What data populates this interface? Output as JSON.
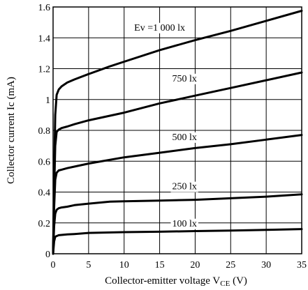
{
  "chart_data": {
    "type": "line",
    "title": "",
    "xlabel_main": "Collector-emitter voltage V",
    "xlabel_sub": "CE",
    "xlabel_unit": " (V)",
    "ylabel": "Collector current Ic (mA)",
    "xlim": [
      0,
      35
    ],
    "ylim": [
      0,
      1.6
    ],
    "x_ticks": [
      0,
      5,
      10,
      15,
      20,
      25,
      30,
      35
    ],
    "y_ticks": [
      0,
      0.2,
      0.4,
      0.6,
      0.8,
      1.0,
      1.2,
      1.4,
      1.6
    ],
    "x_tick_labels": [
      "0",
      "5",
      "10",
      "15",
      "20",
      "25",
      "30",
      "35"
    ],
    "y_tick_labels": [
      "0",
      "0.2",
      "0.4",
      "0.6",
      "0.8",
      "1",
      "1.2",
      "1.4",
      "1.6"
    ],
    "grid": true,
    "series": [
      {
        "name": "Ev =1 000 lx",
        "x": [
          0,
          0.15,
          0.3,
          0.5,
          0.8,
          1.2,
          2,
          3,
          5,
          8,
          10,
          15,
          20,
          25,
          30,
          35
        ],
        "y": [
          0,
          0.5,
          0.9,
          1.03,
          1.065,
          1.085,
          1.11,
          1.13,
          1.165,
          1.215,
          1.245,
          1.32,
          1.385,
          1.445,
          1.51,
          1.575
        ]
      },
      {
        "name": "750 lx",
        "x": [
          0,
          0.15,
          0.3,
          0.5,
          0.8,
          1.2,
          2,
          3,
          5,
          10,
          15,
          20,
          25,
          30,
          35
        ],
        "y": [
          0,
          0.4,
          0.7,
          0.79,
          0.805,
          0.815,
          0.825,
          0.84,
          0.865,
          0.915,
          0.975,
          1.025,
          1.075,
          1.125,
          1.175
        ]
      },
      {
        "name": "500 lx",
        "x": [
          0,
          0.15,
          0.3,
          0.5,
          0.8,
          1.2,
          2,
          3,
          5,
          10,
          15,
          20,
          25,
          30,
          35
        ],
        "y": [
          0,
          0.3,
          0.48,
          0.525,
          0.54,
          0.545,
          0.555,
          0.565,
          0.585,
          0.625,
          0.655,
          0.685,
          0.71,
          0.74,
          0.77
        ]
      },
      {
        "name": "250 lx",
        "x": [
          0,
          0.15,
          0.3,
          0.5,
          0.8,
          1.2,
          2,
          3,
          5,
          8,
          10,
          15,
          20,
          25,
          30,
          35
        ],
        "y": [
          0,
          0.18,
          0.26,
          0.285,
          0.295,
          0.3,
          0.305,
          0.315,
          0.325,
          0.338,
          0.34,
          0.345,
          0.35,
          0.36,
          0.37,
          0.385
        ]
      },
      {
        "name": "100 lx",
        "x": [
          0,
          0.15,
          0.3,
          0.5,
          0.8,
          1.2,
          2,
          3,
          5,
          10,
          15,
          20,
          25,
          30,
          35
        ],
        "y": [
          0,
          0.08,
          0.11,
          0.115,
          0.12,
          0.122,
          0.125,
          0.128,
          0.135,
          0.14,
          0.143,
          0.147,
          0.15,
          0.155,
          0.16
        ]
      }
    ],
    "annotations": [
      {
        "text": "Ev =1 000 lx",
        "x": 15.0,
        "y": 1.47
      },
      {
        "text": "750 lx",
        "x": 18.5,
        "y": 1.14
      },
      {
        "text": "500 lx",
        "x": 18.5,
        "y": 0.76
      },
      {
        "text": "250 lx",
        "x": 18.5,
        "y": 0.44
      },
      {
        "text": "100 lx",
        "x": 18.5,
        "y": 0.2
      }
    ]
  }
}
